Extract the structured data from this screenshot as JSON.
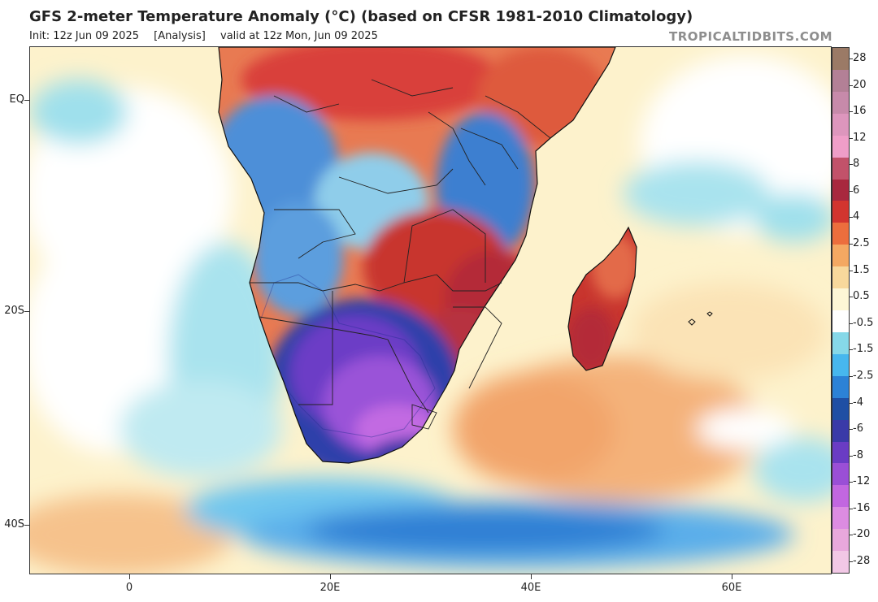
{
  "header": {
    "title": "GFS 2-meter Temperature Anomaly (°C) (based on CFSR 1981-2010 Climatology)",
    "init": "Init: 12z Jun 09 2025",
    "analysis": "[Analysis]",
    "valid": "valid at 12z Mon, Jun 09 2025",
    "brand": "TROPICALTIDBITS.COM"
  },
  "axes": {
    "y_labels": [
      "EQ",
      "20S",
      "40S"
    ],
    "x_labels": [
      "0",
      "20E",
      "40E",
      "60E"
    ]
  },
  "colorbar": {
    "labels": [
      "28",
      "20",
      "16",
      "12",
      "8",
      "6",
      "4",
      "2.5",
      "1.5",
      "0.5",
      "-0.5",
      "-1.5",
      "-2.5",
      "-4",
      "-6",
      "-8",
      "-12",
      "-16",
      "-20",
      "-28"
    ],
    "colors": [
      "#9b7a66",
      "#b38096",
      "#c78aaa",
      "#dd96bd",
      "#ef9ec8",
      "#c2526a",
      "#a8283e",
      "#d2352f",
      "#ec6e3d",
      "#f4a862",
      "#f8d89c",
      "#fdf6d6",
      "#ffffff",
      "#86d8e8",
      "#47b7ee",
      "#2c82d6",
      "#1f4fa4",
      "#3a3aa8",
      "#6a3cc4",
      "#9a4fd6",
      "#c267e0",
      "#dc8ce2",
      "#e8a8dc",
      "#f2c8e6"
    ]
  },
  "map_regions": {
    "ocean": "Atlantic Ocean",
    "africa": "Southern Africa",
    "madagascar": "Madagascar"
  }
}
